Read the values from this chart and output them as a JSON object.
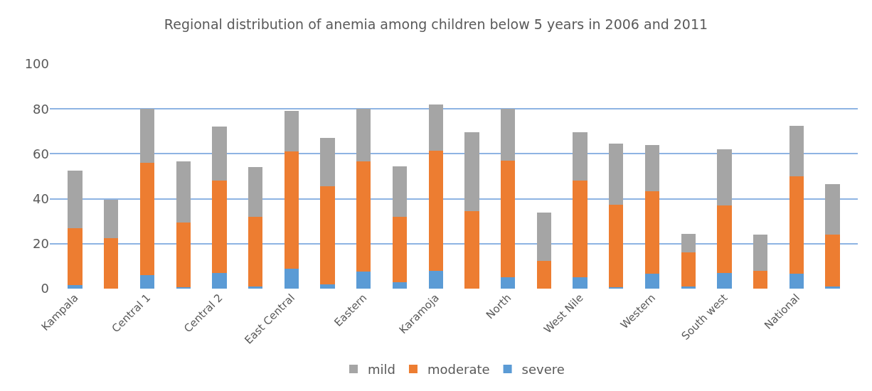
{
  "chart_data": {
    "type": "bar",
    "title": "Regional distribution of anemia among children below 5 years in 2006 and 2011",
    "categories": [
      "Kampala",
      null,
      "Central 1",
      null,
      "Central 2",
      null,
      "East Central",
      null,
      "Eastern",
      null,
      "Karamoja",
      null,
      "North",
      null,
      "West Nile",
      null,
      "Western",
      null,
      "South west",
      null,
      "National",
      null
    ],
    "stacked": true,
    "series": [
      {
        "name": "severe",
        "color": "#5b9bd5",
        "values": [
          1.5,
          0,
          6,
          0.5,
          7,
          1,
          9,
          2,
          7.5,
          3,
          8,
          0,
          5,
          0,
          5,
          0.5,
          6.5,
          1,
          7,
          0,
          6.5,
          1
        ]
      },
      {
        "name": "moderate",
        "color": "#ed7d31",
        "values": [
          25.5,
          22.5,
          50,
          29,
          41,
          31,
          52,
          43.5,
          49,
          29,
          53.5,
          34.5,
          52,
          12.5,
          43,
          37,
          37,
          15,
          30,
          8,
          43.5,
          23
        ]
      },
      {
        "name": "mild",
        "color": "#a5a5a5",
        "values": [
          25.5,
          17,
          24,
          27,
          24,
          22,
          18,
          21.5,
          23.5,
          22.5,
          20.5,
          35,
          23,
          21.5,
          21.5,
          27,
          20.5,
          8.5,
          25,
          16,
          22.5,
          22.5
        ]
      }
    ],
    "ylim": [
      0,
      100
    ],
    "yticks": [
      0,
      20,
      40,
      60,
      80,
      100
    ],
    "grid": "y",
    "legend": "bottom"
  }
}
